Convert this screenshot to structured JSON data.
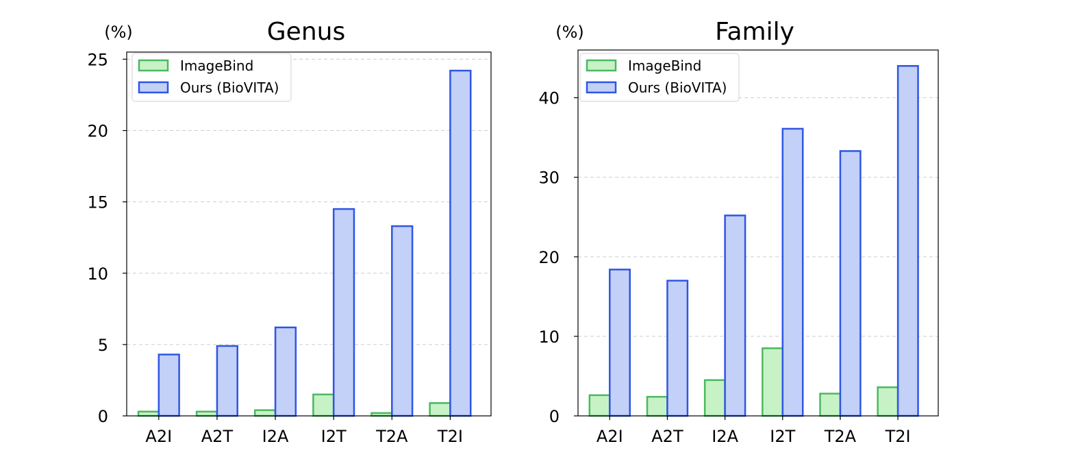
{
  "chart_data": [
    {
      "type": "bar",
      "title": "Genus",
      "ylabel": "(%)",
      "xlabel": "",
      "categories": [
        "A2I",
        "A2T",
        "I2A",
        "I2T",
        "T2A",
        "T2I"
      ],
      "ylim": [
        0,
        25.5
      ],
      "yticks": [
        0,
        5,
        10,
        15,
        20,
        25
      ],
      "grid": true,
      "legend": "top-left",
      "series": [
        {
          "name": "ImageBind",
          "values": [
            0.3,
            0.3,
            0.4,
            1.5,
            0.2,
            0.9
          ]
        },
        {
          "name": "Ours (BioVITA)",
          "values": [
            4.3,
            4.9,
            6.2,
            14.5,
            13.3,
            24.2
          ]
        }
      ]
    },
    {
      "type": "bar",
      "title": "Family",
      "ylabel": "(%)",
      "xlabel": "",
      "categories": [
        "A2I",
        "A2T",
        "I2A",
        "I2T",
        "T2A",
        "T2I"
      ],
      "ylim": [
        0,
        46
      ],
      "yticks": [
        0,
        10,
        20,
        30,
        40
      ],
      "grid": true,
      "legend": "top-left",
      "series": [
        {
          "name": "ImageBind",
          "values": [
            2.6,
            2.4,
            4.5,
            8.5,
            2.8,
            3.6
          ]
        },
        {
          "name": "Ours (BioVITA)",
          "values": [
            18.4,
            17.0,
            25.2,
            36.1,
            33.3,
            44.0
          ]
        }
      ]
    }
  ],
  "colors": {
    "imagebind_fill": "#c6f2c6",
    "imagebind_edge": "#4cb860",
    "ours_fill": "#c3d0f7",
    "ours_edge": "#2f55e4"
  }
}
